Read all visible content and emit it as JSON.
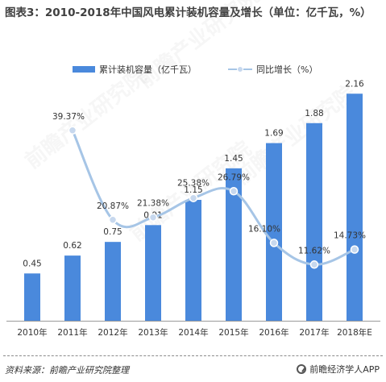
{
  "title": "图表3：2010-2018年中国风电累计装机容量及增长（单位：亿千瓦，%）",
  "source": "资料来源：前瞻产业研究院整理",
  "brand": "前瞻经济学人APP",
  "watermark": "前瞻产业研究院",
  "colors": {
    "bar": "#4a89dc",
    "line": "#a6c5e6",
    "marker_fill": "#c7d8ee",
    "marker_stroke": "#ffffff"
  },
  "chart_data": {
    "type": "bar",
    "categories": [
      "2010年",
      "2011年",
      "2012年",
      "2013年",
      "2014年",
      "2015年",
      "2016年",
      "2017年",
      "2018年E"
    ],
    "series": [
      {
        "name": "累计装机容量（亿千瓦）",
        "type": "bar",
        "axis": "left",
        "values": [
          0.45,
          0.62,
          0.75,
          0.91,
          1.15,
          1.45,
          1.69,
          1.88,
          2.16
        ],
        "labels": [
          "0.45",
          "0.62",
          "0.75",
          "0.91",
          "1.15",
          "1.45",
          "1.69",
          "1.88",
          "2.16"
        ]
      },
      {
        "name": "同比增长（%）",
        "type": "line",
        "axis": "right",
        "smooth": true,
        "values": [
          null,
          39.37,
          20.87,
          21.38,
          25.38,
          26.79,
          16.1,
          11.62,
          14.73
        ],
        "labels": [
          "",
          "39.37%",
          "20.87%",
          "21.38%",
          "25.38%",
          "26.79%",
          "16.10%",
          "11.62%",
          "14.73%"
        ]
      }
    ],
    "ylim": [
      0,
      2.3
    ],
    "y2lim": [
      0,
      50
    ],
    "grid": false,
    "legend": "top"
  }
}
